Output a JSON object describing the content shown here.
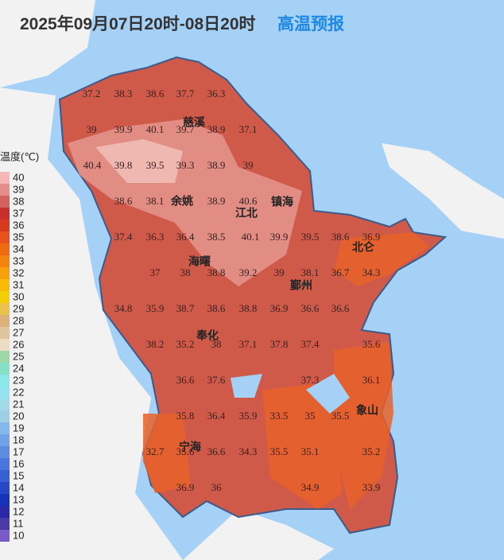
{
  "header": {
    "title": "2025年09月07日20时-08日20时",
    "subtitle": "高温预报"
  },
  "legend": {
    "title": "温度(℃)",
    "items": [
      {
        "value": 40,
        "color": "#f4b6b6"
      },
      {
        "value": 39,
        "color": "#e58d8a"
      },
      {
        "value": 38,
        "color": "#d4615d"
      },
      {
        "value": 37,
        "color": "#c8302e"
      },
      {
        "value": 36,
        "color": "#d83a1f"
      },
      {
        "value": 35,
        "color": "#e8501c"
      },
      {
        "value": 34,
        "color": "#f06a12"
      },
      {
        "value": 33,
        "color": "#f3850f"
      },
      {
        "value": 32,
        "color": "#f6a00b"
      },
      {
        "value": 31,
        "color": "#f8bb08"
      },
      {
        "value": 30,
        "color": "#f3d006"
      },
      {
        "value": 29,
        "color": "#e8c24a"
      },
      {
        "value": 28,
        "color": "#dcb27a"
      },
      {
        "value": 27,
        "color": "#e0c49e"
      },
      {
        "value": 26,
        "color": "#ecdcc4"
      },
      {
        "value": 25,
        "color": "#9fd8a8"
      },
      {
        "value": 24,
        "color": "#86e0c8"
      },
      {
        "value": 23,
        "color": "#8ae8e8"
      },
      {
        "value": 22,
        "color": "#94e2f0"
      },
      {
        "value": 21,
        "color": "#a0dce8"
      },
      {
        "value": 20,
        "color": "#9cd0e4"
      },
      {
        "value": 19,
        "color": "#84b8ea"
      },
      {
        "value": 18,
        "color": "#6fa2e6"
      },
      {
        "value": 17,
        "color": "#5b8ce2"
      },
      {
        "value": 16,
        "color": "#4876dc"
      },
      {
        "value": 15,
        "color": "#3660d4"
      },
      {
        "value": 14,
        "color": "#2448c8"
      },
      {
        "value": 13,
        "color": "#1632b8"
      },
      {
        "value": 12,
        "color": "#2a2aa8"
      },
      {
        "value": 11,
        "color": "#4a3aa8"
      },
      {
        "value": 10,
        "color": "#7a5ac8"
      }
    ]
  },
  "districts": [
    "慈溪",
    "余姚",
    "江北",
    "镇海",
    "北仑",
    "海曙",
    "鄞州",
    "奉化",
    "象山",
    "宁海"
  ],
  "stations": [
    37.2,
    38.3,
    38.6,
    37.7,
    36.3,
    39,
    39.9,
    40.1,
    39.7,
    38.9,
    37.1,
    40.4,
    39.8,
    39.5,
    39.3,
    38.9,
    39,
    38.6,
    38.1,
    38.9,
    40.6,
    37.4,
    36.3,
    36.4,
    38.5,
    40.1,
    39.9,
    39.5,
    38.6,
    36.9,
    37,
    38,
    38.8,
    39.2,
    39,
    38.1,
    36.7,
    34.3,
    34.8,
    35.9,
    38.7,
    38.6,
    38.8,
    36.9,
    36.6,
    36.6,
    38.2,
    35.2,
    38,
    37.1,
    37.8,
    37.4,
    35.6,
    36.6,
    37.6,
    37.3,
    36.1,
    35.8,
    36.4,
    35.9,
    33.5,
    35,
    35.5,
    32.7,
    35.6,
    36.6,
    34.3,
    35.5,
    35.1,
    35.2,
    36.9,
    36,
    34.9,
    33.9
  ]
}
